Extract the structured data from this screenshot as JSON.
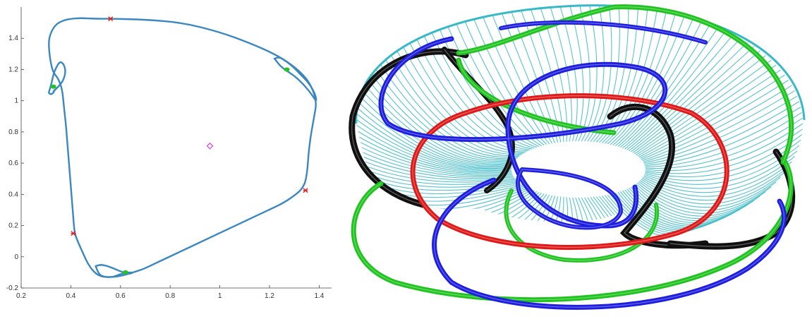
{
  "chart_data": [
    {
      "type": "line",
      "title": "",
      "xlabel": "",
      "ylabel": "",
      "xlim": [
        0.2,
        1.45
      ],
      "ylim": [
        -0.2,
        1.6
      ],
      "xticks": [
        "0.2",
        "0.4",
        "0.6",
        "0.8",
        "1",
        "1.2",
        "1.4"
      ],
      "xtick_values": [
        0.2,
        0.4,
        0.6,
        0.8,
        1.0,
        1.2,
        1.4
      ],
      "yticks": [
        "-0.2",
        "0",
        "0.2",
        "0.4",
        "0.6",
        "0.8",
        "1",
        "1.2",
        "1.4"
      ],
      "ytick_values": [
        -0.2,
        0,
        0.2,
        0.4,
        0.6,
        0.8,
        1.0,
        1.2,
        1.4
      ],
      "grid": false,
      "series": [
        {
          "color": "#3a87c2",
          "style": "dotted-curve",
          "x": [
            0.56,
            0.7,
            0.85,
            1.0,
            1.12,
            1.22,
            1.29,
            1.34,
            1.37,
            1.39,
            1.38,
            1.36,
            1.35,
            1.33,
            1.29,
            1.25,
            1.21,
            1.17,
            1.13,
            1.09,
            1.05,
            1.01,
            0.97,
            0.93,
            0.89,
            0.85,
            0.81,
            0.77,
            0.73,
            0.69,
            0.65,
            0.61,
            0.57,
            0.53,
            0.5,
            0.47,
            0.45,
            0.43,
            0.415,
            0.41,
            0.405,
            0.4,
            0.395,
            0.39,
            0.385,
            0.38,
            0.375,
            0.37,
            0.365,
            0.355,
            0.345,
            0.335,
            0.325,
            0.315,
            0.31,
            0.32,
            0.34,
            0.37,
            0.4,
            0.44,
            0.5,
            0.56
          ],
          "y": [
            1.525,
            1.52,
            1.5,
            1.44,
            1.37,
            1.3,
            1.23,
            1.16,
            1.09,
            0.99,
            0.9,
            0.72,
            0.5,
            0.43,
            0.38,
            0.34,
            0.31,
            0.28,
            0.25,
            0.22,
            0.19,
            0.16,
            0.13,
            0.1,
            0.07,
            0.04,
            0.01,
            -0.02,
            -0.05,
            -0.08,
            -0.1,
            -0.12,
            -0.13,
            -0.13,
            -0.11,
            -0.05,
            0.02,
            0.09,
            0.15,
            0.25,
            0.35,
            0.45,
            0.55,
            0.65,
            0.75,
            0.85,
            0.92,
            1.0,
            1.07,
            1.12,
            1.15,
            1.17,
            1.2,
            1.28,
            1.38,
            1.44,
            1.49,
            1.515,
            1.525,
            1.53,
            1.525,
            1.525
          ]
        },
        {
          "color": "#3a87c2",
          "style": "dotted-curve",
          "x": [
            0.33,
            0.35,
            0.37,
            0.38,
            0.37,
            0.355,
            0.34,
            0.33,
            0.325,
            0.32,
            0.315,
            0.31,
            0.32,
            0.33,
            0.335
          ],
          "y": [
            1.06,
            1.09,
            1.13,
            1.19,
            1.24,
            1.25,
            1.21,
            1.17,
            1.13,
            1.1,
            1.07,
            1.05,
            1.04,
            1.05,
            1.07
          ]
        },
        {
          "color": "#3a87c2",
          "style": "dotted-curve",
          "x": [
            1.22,
            1.24,
            1.27,
            1.3,
            1.33,
            1.36,
            1.385,
            1.39,
            1.37,
            1.34,
            1.3,
            1.27,
            1.245,
            1.23,
            1.22
          ],
          "y": [
            1.27,
            1.28,
            1.25,
            1.21,
            1.16,
            1.11,
            1.04,
            0.99,
            1.04,
            1.1,
            1.16,
            1.19,
            1.22,
            1.25,
            1.27
          ]
        },
        {
          "color": "#3a87c2",
          "style": "dotted-curve",
          "x": [
            0.5,
            0.52,
            0.55,
            0.58,
            0.61,
            0.64,
            0.65,
            0.63,
            0.6,
            0.57,
            0.54,
            0.52,
            0.51,
            0.5
          ],
          "y": [
            -0.06,
            -0.05,
            -0.06,
            -0.08,
            -0.1,
            -0.11,
            -0.1,
            -0.1,
            -0.11,
            -0.13,
            -0.13,
            -0.12,
            -0.1,
            -0.06
          ]
        }
      ],
      "fixed_points_red": [
        {
          "x": 0.56,
          "y": 1.525
        },
        {
          "x": 1.345,
          "y": 0.425
        },
        {
          "x": 0.41,
          "y": 0.15
        }
      ],
      "fixed_points_green": [
        {
          "x": 0.33,
          "y": 1.09
        },
        {
          "x": 1.27,
          "y": 1.2
        },
        {
          "x": 0.62,
          "y": -0.1
        }
      ],
      "center_point_magenta": {
        "x": 0.96,
        "y": 0.71
      }
    }
  ],
  "render_3d": {
    "torus_mesh_color": "#37b9c6",
    "ring_colors": {
      "blue": "#1e1ee0",
      "red": "#e01818",
      "green": "#1fc41f",
      "black": "#101010"
    }
  }
}
